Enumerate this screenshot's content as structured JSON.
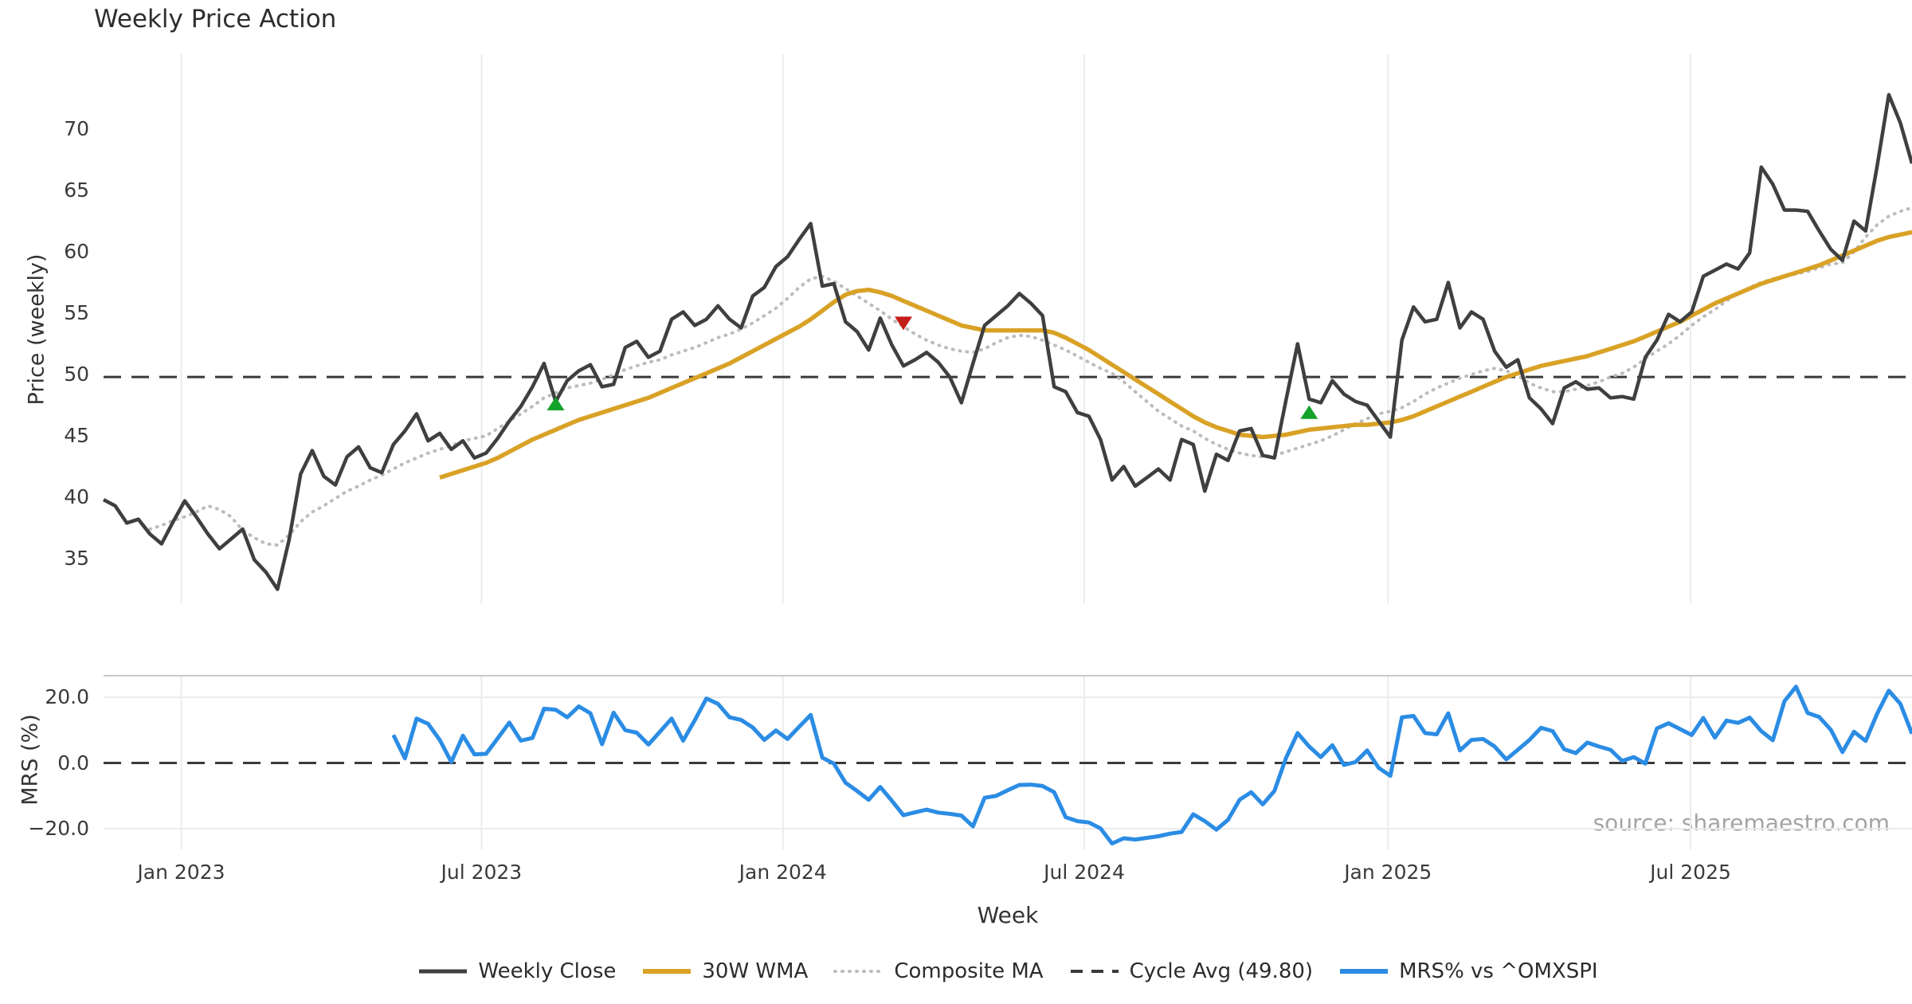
{
  "title": "Weekly Price Action",
  "source_text": "source: sharemaestro.com",
  "axes": {
    "price_label": "Price (weekly)",
    "mrs_label": "MRS (%)",
    "x_label": "Week",
    "price_ticks": [
      "35",
      "40",
      "45",
      "50",
      "55",
      "60",
      "65",
      "70"
    ],
    "mrs_ticks": [
      {
        "value": 20,
        "label": "20.0"
      },
      {
        "value": 0,
        "label": "0.0"
      },
      {
        "value": -20,
        "label": "−20.0"
      }
    ],
    "x_ticks": [
      {
        "week": 6.7,
        "label": "Jan 2023"
      },
      {
        "week": 32.6,
        "label": "Jul 2023"
      },
      {
        "week": 58.6,
        "label": "Jan 2024"
      },
      {
        "week": 84.6,
        "label": "Jul 2024"
      },
      {
        "week": 110.8,
        "label": "Jan 2025"
      },
      {
        "week": 136.9,
        "label": "Jul 2025"
      }
    ]
  },
  "colors": {
    "weekly_close": "#3f3f3f",
    "wma": "#d9a226",
    "composite": "#bcbcbc",
    "cycle_avg": "#3a3a3a",
    "mrs": "#2b8ce4",
    "buy_marker": "#13a22a",
    "sell_marker": "#c41e1a",
    "grid": "#ebebeb",
    "spine": "#c9c9c9"
  },
  "legend": [
    {
      "label": "Weekly Close",
      "color": "#3f3f3f",
      "style": "solid",
      "width": 5,
      "icon": "weekly-close-swatch-icon"
    },
    {
      "label": "30W WMA",
      "color": "#d9a226",
      "style": "solid",
      "width": 6,
      "icon": "wma-swatch-icon"
    },
    {
      "label": "Composite MA",
      "color": "#bcbcbc",
      "style": "dotted",
      "width": 4,
      "icon": "composite-ma-swatch-icon"
    },
    {
      "label": "Cycle Avg (49.80)",
      "color": "#3a3a3a",
      "style": "dashed",
      "width": 4,
      "icon": "cycle-avg-swatch-icon"
    },
    {
      "label": "MRS% vs ^OMXSPI",
      "color": "#2b8ce4",
      "style": "solid",
      "width": 6,
      "icon": "mrs-swatch-icon"
    }
  ],
  "chart_data": [
    {
      "type": "line",
      "panel": "price",
      "title": "Weekly Price Action",
      "ylabel": "Price (weekly)",
      "ylim": [
        31,
        74
      ],
      "x_axis": "weeks (Nov 2022 - Nov 2025), ticks at Jan/Jul",
      "grid": "vertical-only",
      "cycle_avg": 49.8,
      "series": [
        {
          "name": "Weekly Close",
          "start_week": 0,
          "values": [
            39.8,
            39.3,
            37.9,
            38.2,
            37.0,
            36.2,
            38.0,
            39.7,
            38.4,
            37.0,
            35.8,
            36.6,
            37.4,
            34.9,
            33.9,
            32.5,
            36.5,
            41.9,
            43.8,
            41.7,
            41.0,
            43.3,
            44.1,
            42.4,
            42.0,
            44.3,
            45.4,
            46.8,
            44.6,
            45.2,
            43.9,
            44.6,
            43.2,
            43.6,
            44.8,
            46.2,
            47.4,
            49.0,
            50.9,
            47.8,
            49.5,
            50.3,
            50.8,
            49.0,
            49.2,
            52.2,
            52.7,
            51.4,
            51.9,
            54.5,
            55.1,
            54.0,
            54.5,
            55.6,
            54.5,
            53.8,
            56.4,
            57.1,
            58.8,
            59.6,
            61.0,
            62.3,
            57.2,
            57.4,
            54.3,
            53.5,
            52.0,
            54.6,
            52.4,
            50.7,
            51.2,
            51.8,
            51.0,
            49.8,
            47.7,
            50.9,
            54.0,
            54.8,
            55.6,
            56.6,
            55.8,
            54.8,
            49.0,
            48.6,
            46.9,
            46.6,
            44.7,
            41.4,
            42.5,
            40.9,
            41.6,
            42.3,
            41.4,
            44.7,
            44.3,
            40.5,
            43.5,
            43.0,
            45.4,
            45.6,
            43.4,
            43.2,
            47.9,
            52.5,
            48.0,
            47.7,
            49.5,
            48.4,
            47.8,
            47.5,
            46.2,
            44.9,
            52.8,
            55.5,
            54.3,
            54.5,
            57.5,
            53.8,
            55.1,
            54.5,
            51.9,
            50.6,
            51.2,
            48.1,
            47.2,
            46.0,
            48.9,
            49.4,
            48.8,
            48.9,
            48.1,
            48.2,
            48.0,
            51.4,
            52.8,
            54.9,
            54.3,
            55.1,
            58.0,
            58.5,
            59.0,
            58.6,
            59.9,
            66.9,
            65.5,
            63.4,
            63.4,
            63.3,
            61.7,
            60.2,
            59.3,
            62.5,
            61.7,
            67.0,
            72.8,
            70.5,
            67.2
          ]
        },
        {
          "name": "30W WMA",
          "start_week": 29,
          "values": [
            41.6,
            41.9,
            42.2,
            42.5,
            42.8,
            43.2,
            43.7,
            44.2,
            44.7,
            45.1,
            45.5,
            45.9,
            46.3,
            46.6,
            46.9,
            47.2,
            47.5,
            47.8,
            48.1,
            48.5,
            48.9,
            49.3,
            49.7,
            50.1,
            50.5,
            50.9,
            51.4,
            51.9,
            52.4,
            52.9,
            53.4,
            53.9,
            54.5,
            55.2,
            55.9,
            56.5,
            56.8,
            56.9,
            56.7,
            56.4,
            56.0,
            55.6,
            55.2,
            54.8,
            54.4,
            54.0,
            53.8,
            53.6,
            53.6,
            53.6,
            53.6,
            53.6,
            53.6,
            53.4,
            53.0,
            52.5,
            52.0,
            51.4,
            50.8,
            50.2,
            49.6,
            49.0,
            48.4,
            47.8,
            47.2,
            46.6,
            46.1,
            45.7,
            45.4,
            45.1,
            45.0,
            44.9,
            45.0,
            45.1,
            45.3,
            45.5,
            45.6,
            45.7,
            45.8,
            45.9,
            45.9,
            46.0,
            46.1,
            46.3,
            46.6,
            47.0,
            47.4,
            47.8,
            48.2,
            48.6,
            49.0,
            49.4,
            49.8,
            50.1,
            50.4,
            50.7,
            50.9,
            51.1,
            51.3,
            51.5,
            51.8,
            52.1,
            52.4,
            52.7,
            53.1,
            53.5,
            53.9,
            54.3,
            54.8,
            55.3,
            55.8,
            56.2,
            56.6,
            57.0,
            57.4,
            57.7,
            58.0,
            58.3,
            58.6,
            58.9,
            59.3,
            59.7,
            60.1,
            60.5,
            60.9,
            61.2,
            61.4,
            61.6
          ]
        },
        {
          "name": "Composite MA",
          "start_week": 4,
          "values": [
            37.4,
            37.7,
            38.1,
            38.4,
            38.8,
            39.3,
            39.0,
            38.4,
            37.3,
            36.7,
            36.2,
            36.1,
            36.9,
            38.0,
            38.8,
            39.3,
            39.9,
            40.5,
            40.9,
            41.4,
            41.8,
            42.3,
            42.8,
            43.2,
            43.6,
            43.9,
            44.2,
            44.6,
            44.8,
            45.0,
            45.6,
            46.2,
            46.8,
            47.4,
            48.1,
            48.5,
            48.9,
            49.1,
            49.3,
            49.6,
            50.0,
            50.4,
            50.7,
            51.0,
            51.2,
            51.6,
            51.9,
            52.2,
            52.6,
            53.0,
            53.3,
            53.7,
            54.2,
            54.8,
            55.4,
            56.2,
            57.1,
            57.8,
            58.0,
            57.6,
            57.0,
            56.4,
            55.8,
            55.2,
            54.5,
            53.9,
            53.3,
            52.8,
            52.4,
            52.1,
            51.9,
            51.8,
            52.1,
            52.6,
            53.0,
            53.2,
            53.1,
            52.8,
            52.4,
            52.0,
            51.5,
            51.0,
            50.5,
            50.1,
            49.4,
            48.6,
            47.8,
            47.0,
            46.4,
            45.8,
            45.4,
            44.8,
            44.3,
            43.9,
            43.6,
            43.4,
            43.3,
            43.4,
            43.7,
            44.0,
            44.3,
            44.6,
            45.0,
            45.5,
            46.0,
            46.4,
            46.8,
            47.0,
            47.3,
            47.8,
            48.4,
            48.9,
            49.3,
            49.7,
            50.0,
            50.3,
            50.5,
            50.3,
            49.9,
            49.3,
            48.9,
            48.6,
            48.6,
            48.8,
            49.1,
            49.4,
            49.8,
            50.1,
            50.6,
            51.3,
            51.9,
            52.5,
            53.2,
            54.0,
            54.7,
            55.3,
            56.0,
            56.6,
            57.1,
            57.5,
            57.8,
            58.0,
            58.2,
            58.4,
            58.7,
            59.0,
            59.1,
            60.0,
            61.2,
            62.2,
            62.9,
            63.3,
            63.6
          ]
        }
      ],
      "markers": {
        "buy": [
          {
            "week": 39,
            "value": 47.6
          },
          {
            "week": 104,
            "value": 46.9
          }
        ],
        "sell": [
          {
            "week": 69,
            "value": 54.2
          }
        ]
      }
    },
    {
      "type": "line",
      "panel": "mrs",
      "ylabel": "MRS (%)",
      "ylim": [
        -28,
        27
      ],
      "zero_line": 0,
      "grid": "both-light",
      "series": [
        {
          "name": "MRS% vs ^OMXSPI",
          "start_week": 25,
          "values": [
            8.5,
            1.4,
            13.5,
            11.9,
            7.0,
            0.3,
            8.3,
            2.6,
            2.8,
            7.5,
            12.3,
            6.8,
            7.6,
            16.5,
            16.2,
            13.9,
            17.2,
            15.1,
            5.7,
            15.3,
            10.0,
            9.2,
            5.6,
            9.5,
            13.5,
            6.8,
            13.0,
            19.6,
            18.0,
            13.9,
            13.1,
            10.8,
            7.0,
            9.9,
            7.3,
            11.0,
            14.6,
            1.6,
            -0.2,
            -6.0,
            -8.5,
            -11.2,
            -7.3,
            -11.5,
            -15.9,
            -15.0,
            -14.2,
            -15.1,
            -15.5,
            -16.0,
            -19.3,
            -10.6,
            -10.0,
            -8.3,
            -6.7,
            -6.6,
            -7.0,
            -8.9,
            -16.5,
            -17.7,
            -18.1,
            -19.9,
            -24.5,
            -22.9,
            -23.3,
            -22.8,
            -22.3,
            -21.5,
            -21.0,
            -15.6,
            -17.7,
            -20.3,
            -17.3,
            -11.2,
            -8.9,
            -12.6,
            -8.5,
            1.5,
            9.1,
            5.0,
            1.8,
            5.4,
            -0.6,
            0.3,
            3.8,
            -1.5,
            -3.9,
            13.9,
            14.3,
            9.1,
            8.7,
            15.1,
            3.8,
            7.0,
            7.3,
            5.0,
            1.1,
            4.0,
            7.0,
            10.7,
            9.7,
            4.2,
            3.0,
            6.2,
            5.0,
            4.0,
            0.6,
            1.8,
            -0.2,
            10.5,
            12.1,
            10.3,
            8.5,
            13.7,
            7.7,
            12.9,
            12.2,
            13.8,
            9.7,
            6.9,
            18.8,
            23.2,
            15.2,
            14.0,
            10.1,
            3.3,
            9.5,
            6.7,
            15.0,
            22.0,
            18.0,
            8.9
          ]
        }
      ]
    }
  ]
}
